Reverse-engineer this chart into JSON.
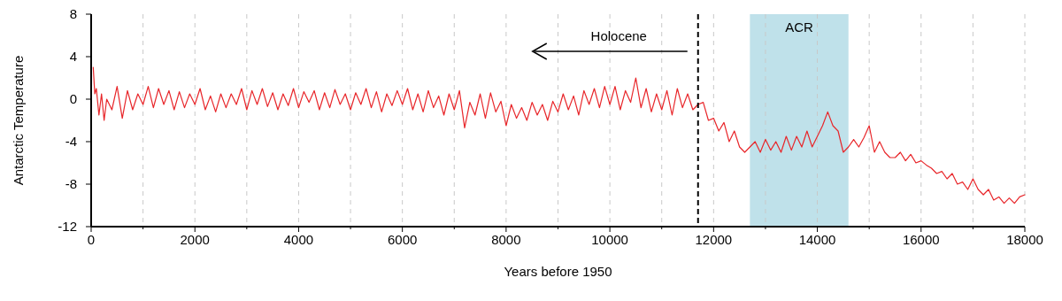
{
  "chart_data": {
    "type": "line",
    "xlabel": "Years before 1950",
    "ylabel": "Antarctic Temperature",
    "xlim": [
      0,
      18000
    ],
    "ylim": [
      -12,
      8
    ],
    "xticks": [
      0,
      {
        "value": 1000,
        "label": null
      },
      2000,
      {
        "value": 3000,
        "label": null
      },
      4000,
      {
        "value": 5000,
        "label": null
      },
      6000,
      {
        "value": 7000,
        "label": null
      },
      8000,
      {
        "value": 9000,
        "label": null
      },
      10000,
      {
        "value": 11000,
        "label": null
      },
      12000,
      {
        "value": 13000,
        "label": null
      },
      14000,
      {
        "value": 15000,
        "label": null
      },
      16000,
      {
        "value": 17000,
        "label": null
      },
      18000
    ],
    "yticks": [
      -12,
      -8,
      -4,
      0,
      4,
      8
    ],
    "grid": "x",
    "line_style": "solid",
    "annotations": [
      "Holocene"
    ],
    "ref_lines": [
      {
        "axis": "x",
        "value": 11700,
        "color": "#000000",
        "line_style": "dashed"
      }
    ],
    "bands": [
      {
        "axis": "x",
        "from": 12700,
        "to": 14600,
        "label": "ACR",
        "color": "#bfe1ea"
      }
    ],
    "series": [
      {
        "color": "#e8262a",
        "x": [
          40,
          70,
          100,
          150,
          200,
          250,
          300,
          400,
          500,
          600,
          700,
          800,
          900,
          1000,
          1100,
          1200,
          1300,
          1400,
          1500,
          1600,
          1700,
          1800,
          1900,
          2000,
          2100,
          2200,
          2300,
          2400,
          2500,
          2600,
          2700,
          2800,
          2900,
          3000,
          3100,
          3200,
          3300,
          3400,
          3500,
          3600,
          3700,
          3800,
          3900,
          4000,
          4100,
          4200,
          4300,
          4400,
          4500,
          4600,
          4700,
          4800,
          4900,
          5000,
          5100,
          5200,
          5300,
          5400,
          5500,
          5600,
          5700,
          5800,
          5900,
          6000,
          6100,
          6200,
          6300,
          6400,
          6500,
          6600,
          6700,
          6800,
          6900,
          7000,
          7100,
          7200,
          7300,
          7400,
          7500,
          7600,
          7700,
          7800,
          7900,
          8000,
          8100,
          8200,
          8300,
          8400,
          8500,
          8600,
          8700,
          8800,
          8900,
          9000,
          9100,
          9200,
          9300,
          9400,
          9500,
          9600,
          9700,
          9800,
          9900,
          10000,
          10100,
          10200,
          10300,
          10400,
          10500,
          10600,
          10700,
          10800,
          10900,
          11000,
          11100,
          11200,
          11300,
          11400,
          11500,
          11600,
          11700,
          11800,
          11900,
          12000,
          12100,
          12200,
          12300,
          12400,
          12500,
          12600,
          12700,
          12800,
          12900,
          13000,
          13100,
          13200,
          13300,
          13400,
          13500,
          13600,
          13700,
          13800,
          13900,
          14000,
          14100,
          14200,
          14300,
          14400,
          14500,
          14600,
          14700,
          14800,
          14900,
          15000,
          15100,
          15200,
          15300,
          15400,
          15500,
          15600,
          15700,
          15800,
          15900,
          16000,
          16100,
          16200,
          16300,
          16400,
          16500,
          16600,
          16700,
          16800,
          16900,
          17000,
          17100,
          17200,
          17300,
          17400,
          17500,
          17600,
          17700,
          17800,
          17900,
          18000
        ],
        "values": [
          3,
          0.5,
          1,
          -1.5,
          0.5,
          -2,
          0,
          -1,
          1.2,
          -1.8,
          0.8,
          -1,
          0.5,
          -0.5,
          1.2,
          -0.8,
          1,
          -0.5,
          0.8,
          -1,
          0.7,
          -0.8,
          0.5,
          -0.5,
          1,
          -1,
          0.3,
          -1.2,
          0.5,
          -0.8,
          0.5,
          -0.5,
          1,
          -1,
          0.8,
          -0.5,
          1,
          -0.7,
          0.6,
          -1,
          0.5,
          -0.6,
          1,
          -0.8,
          0.7,
          -0.3,
          0.8,
          -1,
          0.6,
          -0.8,
          0.9,
          -0.5,
          0.5,
          -1,
          0.6,
          -0.5,
          1,
          -0.8,
          0.7,
          -1.2,
          0.5,
          -0.6,
          0.8,
          -0.5,
          1,
          -1,
          0.5,
          -1.2,
          0.8,
          -0.8,
          0.3,
          -1.5,
          0.5,
          -1,
          0.8,
          -2.7,
          -0.3,
          -1.5,
          0.5,
          -1.8,
          0.6,
          -1.2,
          -0.2,
          -2.5,
          -0.5,
          -1.8,
          -0.8,
          -2,
          -0.3,
          -1.5,
          -0.5,
          -2,
          -0.2,
          -1.2,
          0.5,
          -1,
          0.3,
          -1.5,
          0.8,
          -0.5,
          1,
          -0.8,
          1.2,
          -0.5,
          1.2,
          -1,
          0.8,
          -0.3,
          2,
          -0.8,
          1,
          -1.2,
          0.5,
          -1,
          0.8,
          -1.5,
          1,
          -0.8,
          0.5,
          -1,
          -0.5,
          -0.3,
          -2,
          -1.8,
          -3,
          -2.2,
          -4,
          -3,
          -4.5,
          -5,
          -4.5,
          -4,
          -5,
          -3.8,
          -4.8,
          -4,
          -5,
          -3.5,
          -4.8,
          -3.5,
          -4.5,
          -3,
          -4.5,
          -3.5,
          -2.5,
          -1.2,
          -2.5,
          -3,
          -5,
          -4.5,
          -3.8,
          -4.5,
          -3.6,
          -2.5,
          -5,
          -4,
          -5,
          -5.5,
          -5.5,
          -5,
          -5.8,
          -5.2,
          -6,
          -5.8,
          -6.2,
          -6.5,
          -7,
          -6.8,
          -7.5,
          -7,
          -8,
          -7.8,
          -8.5,
          -7.5,
          -8.5,
          -9,
          -8.5,
          -9.5,
          -9.2,
          -9.8,
          -9.3,
          -9.8,
          -9.2,
          -9
        ]
      }
    ]
  }
}
